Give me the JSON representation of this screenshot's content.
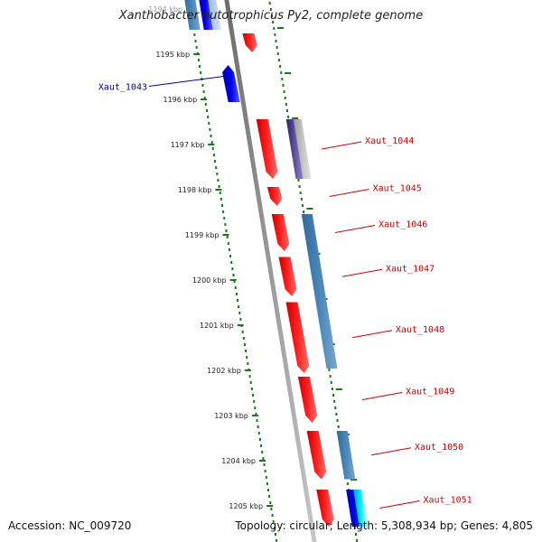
{
  "title": "Xanthobacter autotrophicus Py2, complete genome",
  "accession": "Accession: NC_009720",
  "topology": "Topology: circular; Length: 5,308,934 bp; Genes: 4,805",
  "colors": {
    "forward_gene": "#ff0000",
    "reverse_gene": "#0000dd",
    "steelblue_gene": "#4682b4",
    "cyan_gene": "#00e5ff",
    "purple_gene": "#5a4ca0",
    "backbone": "#808080",
    "scale_ticks": "#1a7a1a",
    "label_red": "#cc0000",
    "label_blue": "#0000aa"
  },
  "scale": {
    "unit": "kbp",
    "ticks": [
      {
        "kbp": 1194,
        "label": "1194 kbp"
      },
      {
        "kbp": 1195,
        "label": "1195 kbp"
      },
      {
        "kbp": 1196,
        "label": "1196 kbp"
      },
      {
        "kbp": 1197,
        "label": "1197 kbp"
      },
      {
        "kbp": 1198,
        "label": "1198 kbp"
      },
      {
        "kbp": 1199,
        "label": "1199 kbp"
      },
      {
        "kbp": 1200,
        "label": "1200 kbp"
      },
      {
        "kbp": 1201,
        "label": "1201 kbp"
      },
      {
        "kbp": 1202,
        "label": "1202 kbp"
      },
      {
        "kbp": 1203,
        "label": "1203 kbp"
      },
      {
        "kbp": 1204,
        "label": "1204 kbp"
      },
      {
        "kbp": 1205,
        "label": "1205 kbp"
      }
    ]
  },
  "genes": [
    {
      "name": "",
      "track": "outer_inner",
      "start": 1193.6,
      "end": 1194.5,
      "color": "steelblue"
    },
    {
      "name": "",
      "track": "outer_mid",
      "start": 1193.6,
      "end": 1194.5,
      "color": "reverse"
    },
    {
      "name": "",
      "track": "outer_outer",
      "start": 1193.6,
      "end": 1194.5,
      "color": "steelblue_light"
    },
    {
      "name": "",
      "track": "fwd",
      "start": 1194.5,
      "end": 1195.0,
      "color": "forward",
      "strand": "+"
    },
    {
      "name": "Xaut_1043",
      "track": "rev",
      "start": 1195.2,
      "end": 1196.1,
      "color": "reverse",
      "strand": "-"
    },
    {
      "name": "Xaut_1044",
      "track": "fwd",
      "start": 1196.4,
      "end": 1197.8,
      "color": "forward",
      "strand": "+"
    },
    {
      "name": "",
      "track": "mid1",
      "start": 1196.4,
      "end": 1197.8,
      "color": "purple"
    },
    {
      "name": "",
      "track": "mid2",
      "start": 1196.4,
      "end": 1197.8,
      "color": "grey"
    },
    {
      "name": "Xaut_1045",
      "track": "fwd",
      "start": 1197.9,
      "end": 1198.4,
      "color": "forward",
      "strand": "+"
    },
    {
      "name": "Xaut_1046",
      "track": "fwd",
      "start": 1198.5,
      "end": 1199.4,
      "color": "forward",
      "strand": "+"
    },
    {
      "name": "Xaut_1047",
      "track": "fwd",
      "start": 1199.45,
      "end": 1200.4,
      "color": "forward",
      "strand": "+"
    },
    {
      "name": "Xaut_1048",
      "track": "fwd",
      "start": 1200.45,
      "end": 1202.1,
      "color": "forward",
      "strand": "+"
    },
    {
      "name": "",
      "track": "mid1",
      "start": 1198.5,
      "end": 1202.0,
      "color": "steelblue"
    },
    {
      "name": "Xaut_1049",
      "track": "fwd",
      "start": 1202.1,
      "end": 1203.2,
      "color": "forward",
      "strand": "+"
    },
    {
      "name": "Xaut_1050",
      "track": "fwd",
      "start": 1203.3,
      "end": 1204.45,
      "color": "forward",
      "strand": "+"
    },
    {
      "name": "",
      "track": "mid1",
      "start": 1203.3,
      "end": 1204.45,
      "color": "steelblue"
    },
    {
      "name": "Xaut_1051",
      "track": "fwd",
      "start": 1204.6,
      "end": 1205.5,
      "color": "forward",
      "strand": "+"
    },
    {
      "name": "",
      "track": "mid1",
      "start": 1204.6,
      "end": 1205.5,
      "color": "reverse"
    },
    {
      "name": "",
      "track": "mid2",
      "start": 1204.6,
      "end": 1205.5,
      "color": "cyan"
    }
  ],
  "gene_labels": [
    {
      "name": "Xaut_1043",
      "side": "left",
      "color": "blue"
    },
    {
      "name": "Xaut_1044",
      "side": "right",
      "color": "red"
    },
    {
      "name": "Xaut_1045",
      "side": "right",
      "color": "red"
    },
    {
      "name": "Xaut_1046",
      "side": "right",
      "color": "red"
    },
    {
      "name": "Xaut_1047",
      "side": "right",
      "color": "red"
    },
    {
      "name": "Xaut_1048",
      "side": "right",
      "color": "red"
    },
    {
      "name": "Xaut_1049",
      "side": "right",
      "color": "red"
    },
    {
      "name": "Xaut_1050",
      "side": "right",
      "color": "red"
    },
    {
      "name": "Xaut_1051",
      "side": "right",
      "color": "red"
    }
  ]
}
